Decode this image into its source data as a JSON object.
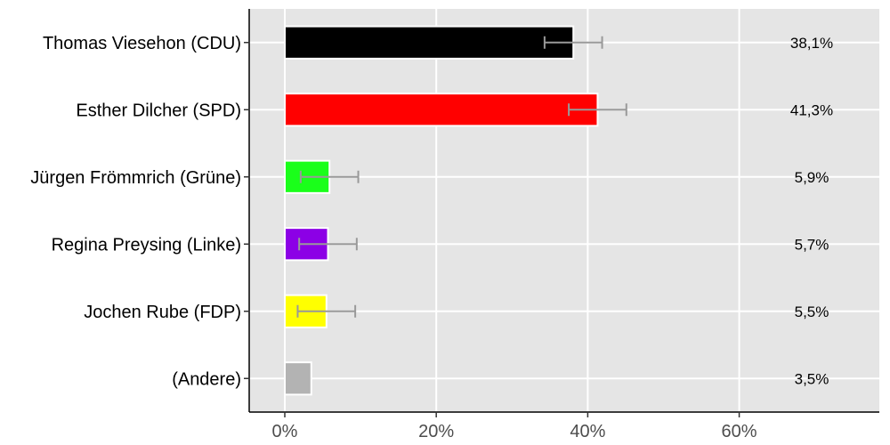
{
  "chart_data": {
    "type": "bar",
    "orientation": "horizontal",
    "title": "",
    "xlabel": "",
    "ylabel": "",
    "xlim": [
      -0.047,
      0.785
    ],
    "grid": true,
    "legend": "none",
    "categories": [
      "Thomas Viesehon (CDU)",
      "Esther Dilcher (SPD)",
      "Jürgen Frömmrich (Grüne)",
      "Regina Preysing (Linke)",
      "Jochen Rube (FDP)",
      "(Andere)"
    ],
    "values": [
      0.381,
      0.413,
      0.059,
      0.057,
      0.055,
      0.035
    ],
    "value_labels": [
      "38,1%",
      "41,3%",
      "5,9%",
      "5,7%",
      "5,5%",
      "3,5%"
    ],
    "error_low": [
      0.343,
      0.375,
      0.021,
      0.019,
      0.017,
      null
    ],
    "error_high": [
      0.419,
      0.451,
      0.097,
      0.095,
      0.093,
      null
    ],
    "colors": [
      "#000000",
      "#ff0000",
      "#1aff1a",
      "#8c00e6",
      "#ffff00",
      "#b3b3b3"
    ],
    "x_ticks": [
      0,
      0.2,
      0.4,
      0.6
    ],
    "x_tick_labels": [
      "0%",
      "20%",
      "40%",
      "60%"
    ],
    "panel_color": "#e5e5e5",
    "grid_color": "#ffffff",
    "error_color": "#999999"
  }
}
